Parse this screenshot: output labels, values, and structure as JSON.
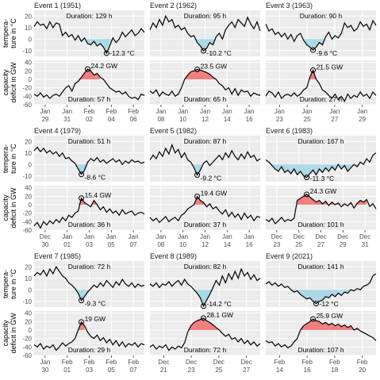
{
  "chart_data": {
    "type": "line",
    "row_labels": {
      "temperature": [
        "tempera-",
        "ture in °C"
      ],
      "capacity": [
        "capacity",
        "deficit in GW"
      ]
    },
    "temperature_axis": {
      "ylim": [
        -15,
        25
      ],
      "ticks": [
        "20",
        "10",
        "0",
        "-10"
      ]
    },
    "capacity_axis": {
      "ylim": [
        -60,
        45
      ],
      "ticks": [
        "40",
        "20",
        "0",
        "-20",
        "-40",
        "-60"
      ]
    },
    "colors": {
      "cold_fill": "#add8e6",
      "deficit_fill": "#f08080",
      "panel_bg": "#ebebeb",
      "line": "#000000"
    },
    "panels": [
      {
        "title": "Event 1 (1951)",
        "duration_temp": "Duration: 129 h",
        "duration_cap": "Duration: 57 h",
        "min_temp_label": "-12.3 °C",
        "max_cap_label": "24.2 GW",
        "x_ticks": [
          {
            "day": "Jan",
            "date": "29"
          },
          {
            "day": "Jan",
            "date": "31"
          },
          {
            "day": "Feb",
            "date": "02"
          },
          {
            "day": "Feb",
            "date": "04"
          },
          {
            "day": "Feb",
            "date": "06"
          }
        ],
        "temp_series": [
          11,
          15,
          12,
          13,
          9,
          15,
          10,
          14,
          13,
          3,
          6,
          2,
          4,
          -1,
          3,
          -2,
          1,
          -4,
          -5,
          -2,
          -6,
          -4,
          -7,
          -12.3,
          -6,
          1,
          -3,
          0,
          6,
          2,
          5,
          8,
          3,
          5,
          9,
          6
        ],
        "cap_series": [
          -35,
          -40,
          -32,
          -42,
          -37,
          -45,
          -38,
          -35,
          -40,
          -30,
          -20,
          -15,
          -28,
          -10,
          -5,
          5,
          15,
          24.2,
          20,
          10,
          14,
          5,
          0,
          -10,
          -20,
          -25,
          -30,
          -28,
          -35,
          -30,
          -40,
          -45,
          -42,
          -48,
          -35,
          -38
        ],
        "temp_min_index": 23,
        "cap_max_index": 17,
        "cold_range": [
          13,
          25
        ],
        "deficit_range": [
          14,
          21
        ]
      },
      {
        "title": "Event 2 (1962)",
        "duration_temp": "Duration: 95 h",
        "duration_cap": "Duration: 65 h",
        "min_temp_label": "-10.2 °C",
        "max_cap_label": "23.5 GW",
        "x_ticks": [
          {
            "day": "Jan",
            "date": "08"
          },
          {
            "day": "Jan",
            "date": "10"
          },
          {
            "day": "Jan",
            "date": "12"
          },
          {
            "day": "Jan",
            "date": "14"
          },
          {
            "day": "Jan",
            "date": "16"
          }
        ],
        "temp_series": [
          8,
          14,
          10,
          17,
          12,
          20,
          15,
          17,
          10,
          12,
          8,
          10,
          5,
          2,
          3,
          -3,
          -6,
          -10.2,
          -8,
          -3,
          -5,
          2,
          5,
          0,
          8,
          12,
          15,
          10,
          17,
          14,
          11,
          19,
          13,
          9,
          15,
          7
        ],
        "cap_series": [
          -28,
          -33,
          -25,
          -40,
          -30,
          -35,
          -38,
          -28,
          -40,
          -35,
          -20,
          0,
          10,
          18,
          20,
          23.5,
          22,
          19,
          16,
          12,
          5,
          0,
          -10,
          -15,
          -25,
          -20,
          -35,
          -22,
          -38,
          -25,
          -30,
          -28,
          -40,
          -32,
          -36,
          -38
        ],
        "temp_min_index": 17,
        "cap_max_index": 15,
        "cold_range": [
          13,
          22
        ],
        "deficit_range": [
          11,
          22
        ]
      },
      {
        "title": "Event 3 (1963)",
        "duration_temp": "Duration: 90 h",
        "duration_cap": "Duration: 27 h",
        "min_temp_label": "-9.6 °C",
        "max_cap_label": "21.5 GW",
        "x_ticks": [
          {
            "day": "Jan",
            "date": "23"
          },
          {
            "day": "Jan",
            "date": "25"
          },
          {
            "day": "Jan",
            "date": "27"
          },
          {
            "day": "Jan",
            "date": "29"
          }
        ],
        "temp_series": [
          13,
          7,
          9,
          4,
          6,
          2,
          5,
          0,
          4,
          -2,
          3,
          5,
          -1,
          -5,
          -7,
          -9.6,
          -7,
          -3,
          -5,
          2,
          6,
          0,
          3,
          1,
          5,
          14,
          10,
          12,
          7,
          9,
          15,
          11,
          13,
          8,
          16,
          12
        ],
        "cap_series": [
          -40,
          -28,
          -32,
          -42,
          -30,
          -45,
          -38,
          -35,
          -40,
          -32,
          -40,
          -35,
          -25,
          -20,
          5,
          21.5,
          0,
          -10,
          -25,
          -30,
          -38,
          -45,
          -35,
          -48,
          -40,
          -52,
          -35,
          -45,
          -38,
          -42,
          -30,
          -40,
          -35,
          -45,
          -30,
          -38
        ],
        "temp_min_index": 15,
        "cap_max_index": 15,
        "cold_range": [
          12,
          19
        ],
        "deficit_range": [
          14,
          16
        ]
      },
      {
        "title": "Event 4 (1979)",
        "duration_temp": "Duration: 51 h",
        "duration_cap": "Duration: 36 h",
        "min_temp_label": "-8.6 °C",
        "max_cap_label": "15.4 GW",
        "x_ticks": [
          {
            "day": "Dec",
            "date": "30"
          },
          {
            "day": "Jan",
            "date": "01"
          },
          {
            "day": "Jan",
            "date": "03"
          },
          {
            "day": "Jan",
            "date": "05"
          },
          {
            "day": "Jan",
            "date": "07"
          }
        ],
        "temp_series": [
          12,
          15,
          11,
          14,
          10,
          12,
          9,
          11,
          7,
          10,
          5,
          6,
          3,
          1,
          -4,
          -8.6,
          -5,
          2,
          5,
          3,
          6,
          2,
          4,
          1,
          3,
          5,
          2,
          4,
          0,
          3,
          1,
          4,
          2,
          3,
          1,
          2
        ],
        "cap_series": [
          -50,
          -42,
          -55,
          -40,
          -48,
          -38,
          -45,
          -35,
          -42,
          -30,
          -38,
          -25,
          -30,
          -20,
          -15,
          15.4,
          5,
          0,
          -5,
          10,
          0,
          -12,
          -5,
          -18,
          -10,
          -20,
          -15,
          -25,
          -12,
          -22,
          -18,
          -15,
          -25,
          -20,
          -18,
          -22
        ],
        "temp_min_index": 15,
        "cap_max_index": 15,
        "cold_range": [
          13,
          17
        ],
        "deficit_range": [
          14,
          21
        ]
      },
      {
        "title": "Event 5 (1982)",
        "duration_temp": "Duration: 87 h",
        "duration_cap": "Duration: 37 h",
        "min_temp_label": "-9.2 °C",
        "max_cap_label": "19.4 GW",
        "x_ticks": [
          {
            "day": "Jan",
            "date": "08"
          },
          {
            "day": "Jan",
            "date": "10"
          },
          {
            "day": "Jan",
            "date": "12"
          },
          {
            "day": "Jan",
            "date": "14"
          },
          {
            "day": "Jan",
            "date": "16"
          }
        ],
        "temp_series": [
          4,
          8,
          5,
          11,
          7,
          14,
          9,
          17,
          10,
          13,
          6,
          10,
          4,
          2,
          -3,
          -9.2,
          -5,
          1,
          3,
          -1,
          2,
          5,
          8,
          4,
          10,
          6,
          12,
          7,
          4,
          9,
          5,
          11,
          6,
          8,
          3,
          5
        ],
        "cap_series": [
          -30,
          -38,
          -32,
          -42,
          -35,
          -28,
          -40,
          -34,
          -30,
          -38,
          -25,
          -20,
          -10,
          -5,
          0,
          19.4,
          10,
          5,
          -5,
          2,
          -10,
          -5,
          -15,
          -22,
          -12,
          -28,
          -18,
          -30,
          -22,
          -35,
          -20,
          -32,
          -25,
          -38,
          -28,
          -30
        ],
        "temp_min_index": 15,
        "cap_max_index": 15,
        "cold_range": [
          12,
          20
        ],
        "deficit_range": [
          14,
          21
        ]
      },
      {
        "title": "Event 6 (1983)",
        "duration_temp": "Duration: 167 h",
        "duration_cap": "Duration: 101 h",
        "min_temp_label": "-11.3 °C",
        "max_cap_label": "24.3 GW",
        "x_ticks": [
          {
            "day": "Dec",
            "date": "23"
          },
          {
            "day": "Dec",
            "date": "25"
          },
          {
            "day": "Dec",
            "date": "27"
          },
          {
            "day": "Dec",
            "date": "29"
          },
          {
            "day": "Dec",
            "date": "31"
          }
        ],
        "temp_series": [
          4,
          2,
          -1,
          -4,
          -6,
          -2,
          -7,
          -5,
          -8,
          -4,
          -9,
          -6,
          -10,
          -11.3,
          -8,
          -5,
          -9,
          -4,
          -7,
          -3,
          -6,
          -2,
          -5,
          0,
          -4,
          -1,
          -6,
          -3,
          0,
          -2,
          2,
          0,
          5,
          2,
          8,
          10
        ],
        "cap_series": [
          -35,
          -40,
          -32,
          -45,
          -38,
          -30,
          -40,
          -35,
          -38,
          -32,
          10,
          15,
          20,
          24.3,
          18,
          12,
          6,
          10,
          2,
          8,
          -2,
          6,
          0,
          4,
          -5,
          2,
          -3,
          5,
          -8,
          3,
          10,
          6,
          12,
          -4,
          2,
          -10
        ],
        "temp_min_index": 13,
        "cap_max_index": 13,
        "cold_range": [
          1,
          32
        ],
        "deficit_range": [
          10,
          32
        ]
      },
      {
        "title": "Event 7 (1985)",
        "duration_temp": "Duration: 72 h",
        "duration_cap": "Duration: 29 h",
        "min_temp_label": "-9.3 °C",
        "max_cap_label": "19 GW",
        "x_ticks": [
          {
            "day": "Jan",
            "date": "30"
          },
          {
            "day": "Feb",
            "date": "01"
          },
          {
            "day": "Feb",
            "date": "03"
          },
          {
            "day": "Feb",
            "date": "05"
          },
          {
            "day": "Feb",
            "date": "07"
          }
        ],
        "temp_series": [
          12,
          15,
          13,
          17,
          12,
          18,
          14,
          20,
          16,
          12,
          10,
          6,
          4,
          1,
          -3,
          -9.3,
          -6,
          -2,
          1,
          4,
          2,
          6,
          3,
          8,
          5,
          2,
          7,
          4,
          9,
          5,
          3,
          6,
          2,
          5,
          3,
          4
        ],
        "cap_series": [
          -35,
          -40,
          -32,
          -45,
          -38,
          -42,
          -35,
          -48,
          -40,
          -30,
          -38,
          -32,
          -28,
          -20,
          0,
          19,
          10,
          -5,
          -15,
          -20,
          -12,
          -25,
          -18,
          -30,
          -22,
          -35,
          -25,
          -38,
          -28,
          -40,
          -32,
          -36,
          -30,
          -40,
          -32,
          -35
        ],
        "temp_min_index": 15,
        "cap_max_index": 15,
        "cold_range": [
          13,
          18
        ],
        "deficit_range": [
          14,
          16
        ]
      },
      {
        "title": "Event 8 (1989)",
        "duration_temp": "Duration: 82 h",
        "duration_cap": "Duration: 72 h",
        "min_temp_label": "-14.2 °C",
        "max_cap_label": "28.1 GW",
        "x_ticks": [
          {
            "day": "Dec",
            "date": "21"
          },
          {
            "day": "Dec",
            "date": "23"
          },
          {
            "day": "Dec",
            "date": "25"
          },
          {
            "day": "Dec",
            "date": "27"
          }
        ],
        "temp_series": [
          5,
          3,
          6,
          2,
          5,
          4,
          7,
          3,
          6,
          8,
          4,
          9,
          5,
          3,
          0,
          -3,
          -7,
          -14.2,
          -9,
          -4,
          2,
          8,
          4,
          12,
          6,
          14,
          9,
          16,
          10,
          18,
          12,
          15,
          9,
          13,
          8,
          10
        ],
        "cap_series": [
          -40,
          -35,
          -45,
          -38,
          -42,
          -35,
          -48,
          -40,
          -45,
          -38,
          -42,
          -30,
          -5,
          10,
          18,
          22,
          25,
          28.1,
          22,
          18,
          12,
          6,
          0,
          -8,
          -15,
          -10,
          -22,
          -18,
          -28,
          -20,
          -32,
          -25,
          -35,
          -28,
          -38,
          -32
        ],
        "temp_min_index": 17,
        "cap_max_index": 17,
        "cold_range": [
          14,
          21
        ],
        "deficit_range": [
          12,
          22
        ]
      },
      {
        "title": "Event 9 (2021)",
        "duration_temp": "Duration: 141 h",
        "duration_cap": "Duration: 107 h",
        "min_temp_label": "-12 °C",
        "max_cap_label": "25.9 GW",
        "x_ticks": [
          {
            "day": "Feb",
            "date": "14"
          },
          {
            "day": "Feb",
            "date": "16"
          },
          {
            "day": "Feb",
            "date": "18"
          },
          {
            "day": "Feb",
            "date": "20"
          }
        ],
        "temp_series": [
          5,
          7,
          4,
          6,
          3,
          5,
          2,
          3,
          0,
          -2,
          -1,
          -4,
          -6,
          -8,
          -7,
          -10,
          -12,
          -10,
          -9,
          -6,
          -7,
          -4,
          -6,
          -3,
          -5,
          -2,
          -3,
          0,
          -1,
          1,
          0,
          3,
          4,
          6,
          12,
          14
        ],
        "cap_series": [
          -25,
          -30,
          -28,
          -38,
          -32,
          -40,
          -35,
          -42,
          -38,
          -28,
          -20,
          0,
          10,
          15,
          20,
          25.9,
          22,
          20,
          14,
          18,
          12,
          16,
          10,
          14,
          8,
          12,
          6,
          10,
          0,
          4,
          -2,
          -6,
          -10,
          -14,
          -18,
          -25
        ],
        "temp_min_index": 16,
        "cap_max_index": 15,
        "cold_range": [
          8,
          30
        ],
        "deficit_range": [
          11,
          30
        ]
      }
    ]
  }
}
